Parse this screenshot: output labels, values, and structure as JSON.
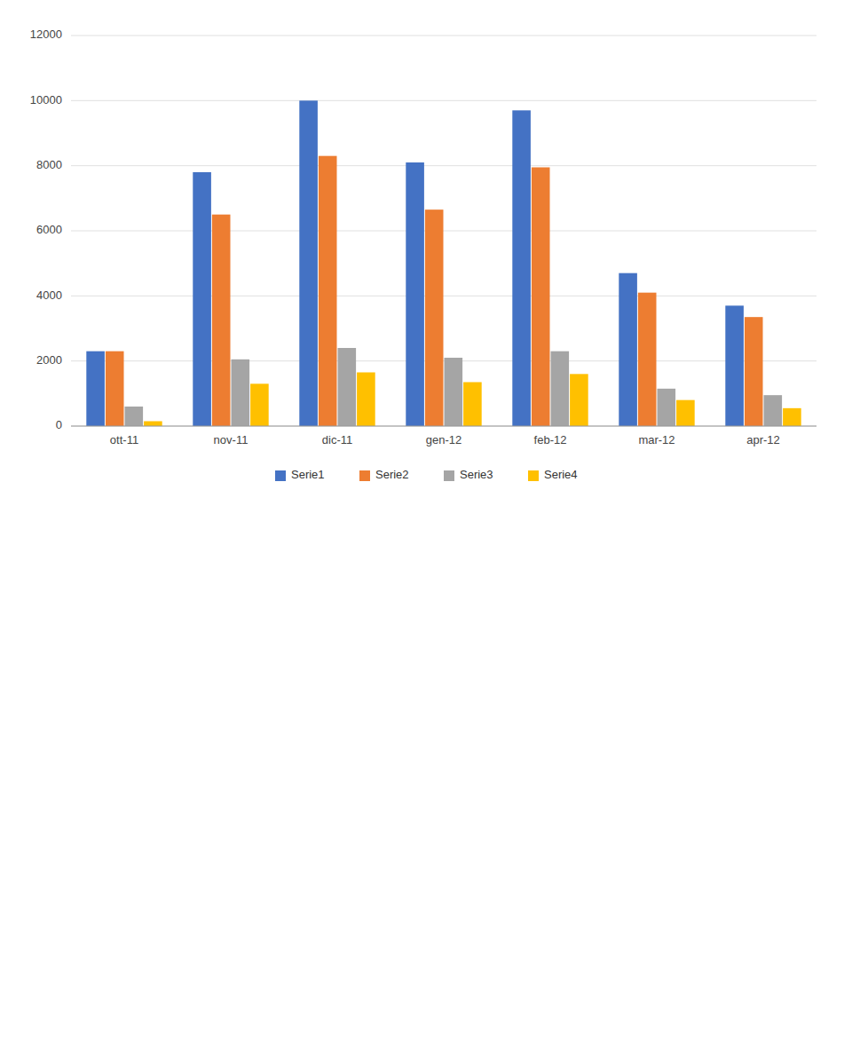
{
  "chart_data": {
    "type": "bar",
    "categories": [
      "ott-11",
      "nov-11",
      "dic-11",
      "gen-12",
      "feb-12",
      "mar-12",
      "apr-12"
    ],
    "series": [
      {
        "name": "Serie1",
        "color": "#4472C4",
        "values": [
          2300,
          7800,
          10000,
          8100,
          9700,
          4700,
          3700
        ]
      },
      {
        "name": "Serie2",
        "color": "#ED7D31",
        "values": [
          2300,
          6500,
          8300,
          6650,
          7950,
          4100,
          3350
        ]
      },
      {
        "name": "Serie3",
        "color": "#A5A5A5",
        "values": [
          600,
          2050,
          2400,
          2100,
          2300,
          1150,
          950
        ]
      },
      {
        "name": "Serie4",
        "color": "#FFC000",
        "values": [
          150,
          1300,
          1650,
          1350,
          1600,
          800,
          550
        ]
      }
    ],
    "ylim": [
      0,
      12000
    ],
    "yticks": [
      0,
      2000,
      4000,
      6000,
      8000,
      10000,
      12000
    ],
    "grid": true,
    "legend": "bottom"
  }
}
